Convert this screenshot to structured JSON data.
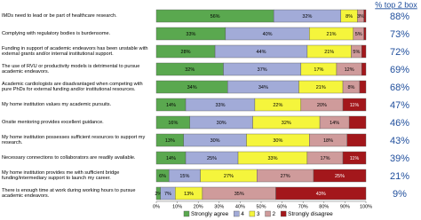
{
  "chart_data": {
    "type": "stacked-barh",
    "categories": [
      "IMDs need to lead or be part of healthcare research.",
      "Complying with regulatory bodies is burdensome.",
      "Funding in support of academic endeavors has been unstable with external grants and/or internal institutional support.",
      "The use of RVU or productivity models is detrimental to pursue academic endeavors.",
      "Academic cardiologists are disadvantaged when competing with pure PhDs for external funding and/or institutional resources.",
      "My home institution values my academic pursuits.",
      "Onsite mentoring provides excellent guidance.",
      "My home institution possesses sufficient resources to support my research.",
      "Necessary connections to collaborators are readily available.",
      "My home institution provides me with sufficient bridge funding/intermediary support to launch my career.",
      "There is enough time at work during working hours to pursue academic endeavors."
    ],
    "series": [
      {
        "name": "Strongly agree",
        "color": "#5aa84f",
        "values": [
          56,
          33,
          28,
          32,
          34,
          14,
          16,
          13,
          14,
          6,
          2
        ],
        "value_labels": [
          "56%",
          "33%",
          "28%",
          "32%",
          "34%",
          "14%",
          "16%",
          "13%",
          "14%",
          "6%",
          "2%"
        ]
      },
      {
        "name": "4",
        "color": "#a2abd8",
        "values": [
          32,
          40,
          44,
          37,
          34,
          33,
          30,
          30,
          25,
          15,
          7
        ],
        "value_labels": [
          "32%",
          "40%",
          "44%",
          "37%",
          "34%",
          "33%",
          "30%",
          "30%",
          "25%",
          "15%",
          "7%"
        ]
      },
      {
        "name": "3",
        "color": "#f5f53c",
        "values": [
          8,
          21,
          21,
          17,
          21,
          22,
          32,
          30,
          33,
          27,
          13
        ],
        "value_labels": [
          "8%",
          "21%",
          "21%",
          "17%",
          "21%",
          "22%",
          "32%",
          "30%",
          "33%",
          "27%",
          "13%"
        ]
      },
      {
        "name": "2",
        "color": "#cf9b9b",
        "values": [
          3,
          5,
          5,
          12,
          8,
          20,
          14,
          18,
          17,
          27,
          35
        ],
        "value_labels": [
          "3%",
          "5%",
          "5%",
          "12%",
          "8%",
          "20%",
          "14%",
          "18%",
          "17%",
          "27%",
          "35%"
        ]
      },
      {
        "name": "Strongly disagree",
        "color": "#a3171b",
        "values": [
          1,
          1,
          2,
          2,
          3,
          11,
          8,
          9,
          11,
          25,
          43
        ],
        "value_labels": [
          null,
          null,
          null,
          null,
          null,
          "11%",
          null,
          null,
          "11%",
          "25%",
          "43%"
        ]
      }
    ],
    "xlim": [
      0,
      100
    ],
    "xticks": [
      {
        "value": 0,
        "label": "0%"
      },
      {
        "value": 10,
        "label": "10%"
      },
      {
        "value": 20,
        "label": "20%"
      },
      {
        "value": 30,
        "label": "30%"
      },
      {
        "value": 40,
        "label": "40%"
      },
      {
        "value": 50,
        "label": "50%"
      },
      {
        "value": 60,
        "label": "60%"
      },
      {
        "value": 70,
        "label": "70%"
      },
      {
        "value": 80,
        "label": "80%"
      },
      {
        "value": 90,
        "label": "90%"
      },
      {
        "value": 100,
        "label": "100%"
      }
    ],
    "top2_box": {
      "title": "% top 2 box",
      "values": [
        88,
        73,
        72,
        69,
        68,
        47,
        46,
        43,
        39,
        21,
        9
      ],
      "value_labels": [
        "88%",
        "73%",
        "72%",
        "69%",
        "68%",
        "47%",
        "46%",
        "43%",
        "39%",
        "21%",
        "9%"
      ],
      "color": "#1f4e9c"
    },
    "legend": "bottom"
  }
}
